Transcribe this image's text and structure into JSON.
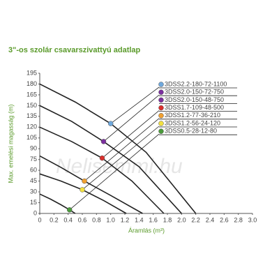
{
  "chart_data": {
    "type": "line",
    "title": "3\"-os szolár csavarszivattyú adatlap",
    "xlabel": "Áramlás (m³)",
    "ylabel": "Max. emelési magasság (m)",
    "watermark": "Nelisemmi.hu",
    "xlim": [
      0,
      3.0
    ],
    "xticks": [
      0,
      0.2,
      0.4,
      0.6,
      0.8,
      {
        "value": 1.0,
        "label": "1.0"
      },
      1.2,
      1.4,
      1.6,
      1.8,
      {
        "value": 2.0,
        "label": "2.0"
      },
      2.2,
      2.4,
      2.6,
      2.8,
      {
        "value": 3.0,
        "label": "3.0"
      }
    ],
    "ylim": [
      0,
      195
    ],
    "yticks": [
      0,
      15,
      30,
      45,
      60,
      75,
      90,
      105,
      120,
      135,
      150,
      165,
      180,
      195
    ],
    "series": [
      {
        "name": "3DSS2.2-180-72-1100",
        "color": "#6fa8dc",
        "x": [
          0,
          0.5,
          1.0,
          1.5,
          2.2
        ],
        "values": [
          180,
          155,
          125,
          85,
          0
        ],
        "marker": [
          1.0,
          125
        ]
      },
      {
        "name": "3DSS2.0-150-72-750",
        "color": "#7b2f9e",
        "x": [
          0,
          0.45,
          0.9,
          1.4,
          2.0
        ],
        "values": [
          150,
          128,
          100,
          65,
          0
        ],
        "marker": [
          0.9,
          100
        ]
      },
      {
        "name": "3DSS2.0-150-48-750",
        "color": "#7b2f9e"
      },
      {
        "name": "3DSS1.7-109-48-500",
        "color": "#d9302c",
        "x": [
          0,
          0.45,
          0.88,
          1.3,
          1.75
        ],
        "values": [
          120,
          100,
          77,
          45,
          0
        ],
        "marker": [
          0.88,
          77
        ]
      },
      {
        "name": "3DSS1.2-77-36-210",
        "color": "#f0a030",
        "x": [
          0,
          0.3,
          0.63,
          1.0,
          1.45
        ],
        "values": [
          80,
          64,
          45,
          25,
          0
        ],
        "marker": [
          0.63,
          45
        ]
      },
      {
        "name": "3DSS1.2-56-24-120",
        "color": "#f2e040",
        "x": [
          0,
          0.3,
          0.6,
          0.9,
          1.22
        ],
        "values": [
          55,
          45,
          33,
          18,
          0
        ],
        "marker": [
          0.6,
          33
        ]
      },
      {
        "name": "3DSS0.5-28-12-80",
        "color": "#4a9a3a",
        "x": [
          0,
          0.15,
          0.3,
          0.42,
          0.5
        ],
        "values": [
          27,
          20,
          12,
          5,
          0
        ],
        "marker": [
          0.42,
          5
        ]
      }
    ]
  }
}
